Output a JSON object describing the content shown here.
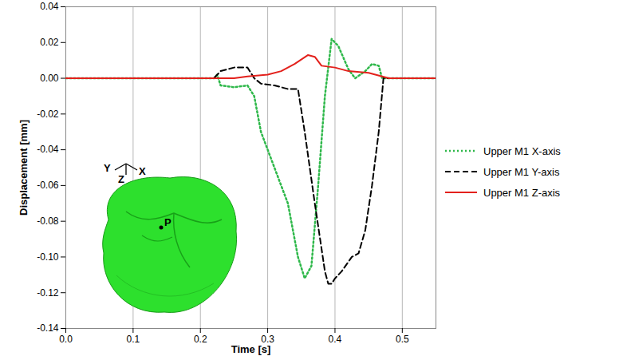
{
  "chart_data": {
    "type": "line",
    "x_label": "Time [s]",
    "y_label": "Displacement [mm]",
    "xlim": [
      0,
      0.55
    ],
    "xticks": [
      {
        "value": 0,
        "label": "0.0"
      },
      0.1,
      0.2,
      0.3,
      0.4,
      0.5
    ],
    "ylim": [
      -0.14,
      0.04
    ],
    "yticks": [
      -0.14,
      -0.12,
      {
        "value": -0.1,
        "label": "-0.10"
      },
      -0.08,
      -0.06,
      -0.04,
      -0.02,
      {
        "value": 0,
        "label": "0.00"
      },
      0.02,
      0.04
    ],
    "grid": "x",
    "legend": "right",
    "annotations": [
      "Y",
      "Z",
      "X",
      "P"
    ],
    "series": [
      {
        "name": "Upper M1 X-axis",
        "color": "#2eb84a",
        "line_style": "dotted",
        "x": [
          0,
          0.1,
          0.22,
          0.225,
          0.23,
          0.25,
          0.27,
          0.28,
          0.29,
          0.31,
          0.33,
          0.345,
          0.355,
          0.365,
          0.375,
          0.385,
          0.395,
          0.405,
          0.42,
          0.43,
          0.445,
          0.455,
          0.465,
          0.47,
          0.48,
          0.55
        ],
        "values": [
          0,
          0,
          0,
          0.002,
          -0.004,
          -0.005,
          -0.004,
          -0.01,
          -0.03,
          -0.05,
          -0.07,
          -0.1,
          -0.112,
          -0.105,
          -0.06,
          -0.01,
          0.022,
          0.018,
          0.005,
          0,
          0.004,
          0.008,
          0.007,
          0,
          0,
          0
        ]
      },
      {
        "name": "Upper M1 Y-axis",
        "color": "#000000",
        "line_style": "dashed",
        "x": [
          0,
          0.1,
          0.22,
          0.23,
          0.25,
          0.27,
          0.28,
          0.29,
          0.31,
          0.33,
          0.345,
          0.355,
          0.37,
          0.385,
          0.39,
          0.395,
          0.4,
          0.41,
          0.425,
          0.435,
          0.445,
          0.455,
          0.465,
          0.472,
          0.48,
          0.55
        ],
        "values": [
          0,
          0,
          0,
          0.004,
          0.006,
          0.006,
          0,
          -0.003,
          -0.004,
          -0.006,
          -0.006,
          -0.03,
          -0.07,
          -0.108,
          -0.115,
          -0.115,
          -0.112,
          -0.108,
          -0.1,
          -0.098,
          -0.085,
          -0.06,
          -0.03,
          0,
          0,
          0
        ]
      },
      {
        "name": "Upper M1 Z-axis",
        "color": "#e3211c",
        "line_style": "solid",
        "x": [
          0,
          0.1,
          0.25,
          0.27,
          0.3,
          0.32,
          0.34,
          0.36,
          0.37,
          0.38,
          0.4,
          0.42,
          0.45,
          0.47,
          0.48,
          0.55
        ],
        "values": [
          0,
          0,
          0,
          0.001,
          0.002,
          0.004,
          0.008,
          0.013,
          0.012,
          0.007,
          0.006,
          0.004,
          0.003,
          0.001,
          0,
          0
        ]
      }
    ]
  }
}
